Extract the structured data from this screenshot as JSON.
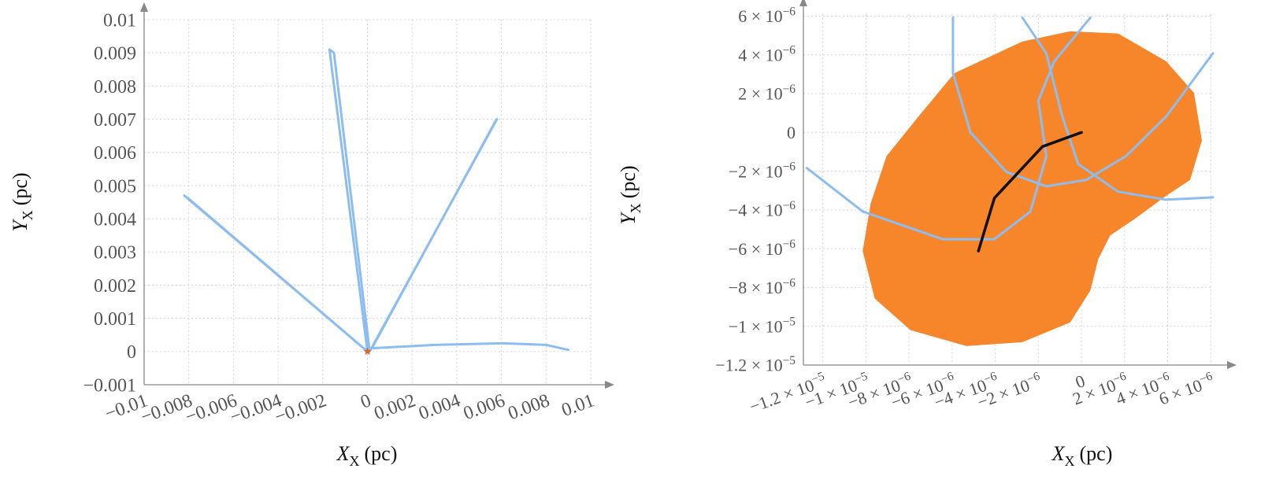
{
  "chart_data": [
    {
      "type": "line",
      "xlabel": {
        "main": "X",
        "sub": "X",
        "unit": "(pc)"
      },
      "ylabel": {
        "main": "Y",
        "sub": "X",
        "unit": "(pc)"
      },
      "xlim": [
        -0.01,
        0.01
      ],
      "ylim": [
        -0.001,
        0.01
      ],
      "grid": true,
      "xticks": [
        {
          "value": -0.01,
          "label": "−0.01"
        },
        {
          "value": -0.008,
          "label": "−0.008"
        },
        {
          "value": -0.006,
          "label": "−0.006"
        },
        {
          "value": -0.004,
          "label": "−0.004"
        },
        {
          "value": -0.002,
          "label": "−0.002"
        },
        0,
        0.002,
        0.004,
        0.006,
        0.008,
        0.01
      ],
      "yticks": [
        {
          "value": -0.001,
          "label": "−0.001"
        },
        0,
        0.001,
        0.002,
        0.003,
        0.004,
        0.005,
        0.006,
        0.007,
        0.008,
        0.009,
        0.01
      ],
      "series": [
        {
          "type": "line",
          "color": "#8dbdf0",
          "x": [
            0,
            -0.0082,
            -0.008,
            0,
            -0.0017,
            -0.0015,
            0.0001,
            0.0058,
            0.0057,
            0.0002,
            0.003,
            0.006,
            0.008,
            0.009
          ],
          "values": [
            0,
            0.0047,
            0.0046,
            0,
            0.0091,
            0.009,
            0,
            0.007,
            0.0069,
            0.0001,
            0.0002,
            0.00025,
            0.0002,
            5e-05
          ]
        },
        {
          "type": "scatter",
          "color": "#e0641b",
          "x": [
            0
          ],
          "values": [
            0
          ]
        }
      ]
    },
    {
      "type": "line",
      "xlabel": {
        "main": "X",
        "sub": "X",
        "unit": "(pc)"
      },
      "ylabel": {
        "main": "Y",
        "sub": "X",
        "unit": "(pc)"
      },
      "xlim": [
        -1.29e-05,
        6.1e-06
      ],
      "ylim": [
        -1.2e-05,
        6.1e-06
      ],
      "grid": true,
      "xticks": [
        {
          "value": -1.2e-05,
          "label": "−1.2 × 10",
          "exponent": "−5"
        },
        {
          "value": -1e-05,
          "label": "−1 × 10",
          "exponent": "−5"
        },
        {
          "value": -8e-06,
          "label": "−8 × 10",
          "exponent": "−6"
        },
        {
          "value": -6e-06,
          "label": "−6 × 10",
          "exponent": "−6"
        },
        {
          "value": -4e-06,
          "label": "−4 × 10",
          "exponent": "−6"
        },
        {
          "value": -2e-06,
          "label": "−2 × 10",
          "exponent": "−6"
        },
        0,
        {
          "value": 2e-06,
          "label": "2 × 10",
          "exponent": "−6"
        },
        {
          "value": 4e-06,
          "label": "4 × 10",
          "exponent": "−6"
        },
        {
          "value": 6e-06,
          "label": "6 × 10",
          "exponent": "−6"
        }
      ],
      "yticks": [
        {
          "value": -1.2e-05,
          "label": "−1.2 × 10",
          "exponent": "−5"
        },
        {
          "value": -1e-05,
          "label": "−1 × 10",
          "exponent": "−5"
        },
        {
          "value": -8e-06,
          "label": "−8 × 10",
          "exponent": "−6"
        },
        {
          "value": -6e-06,
          "label": "−6 × 10",
          "exponent": "−6"
        },
        {
          "value": -4e-06,
          "label": "−4 × 10",
          "exponent": "−6"
        },
        {
          "value": -2e-06,
          "label": "−2 × 10",
          "exponent": "−6"
        },
        0,
        {
          "value": 2e-06,
          "label": "2 × 10",
          "exponent": "−6"
        },
        {
          "value": 4e-06,
          "label": "4 × 10",
          "exponent": "−6"
        },
        {
          "value": 6e-06,
          "label": "6 × 10",
          "exponent": "−6"
        }
      ],
      "series": [
        {
          "type": "area",
          "color": "#f7862b",
          "x": [
            -5.89e-06,
            -2.74e-06,
            -5.2e-07,
            1.7e-06,
            3.93e-06,
            5.22e-06,
            5.59e-06,
            5.04e-06,
            3.93e-06,
            2.44e-06,
            1.33e-06,
            7.8e-07,
            4.1e-07,
            -5.2e-07,
            -2.74e-06,
            -5.33e-06,
            -7.93e-06,
            -9.59e-06,
            -1.015e-05,
            -9.78e-06,
            -9.04e-06,
            -7.56e-06
          ],
          "values": [
            3.06e-06,
            4.69e-06,
            5.22e-06,
            5.1e-06,
            3.67e-06,
            2.04e-06,
            -4.1e-07,
            -2.45e-06,
            -3.27e-06,
            -4.49e-06,
            -5.31e-06,
            -6.53e-06,
            -8.16e-06,
            -9.8e-06,
            -1.082e-05,
            -1.102e-05,
            -1.02e-05,
            -8.57e-06,
            -6.12e-06,
            -3.67e-06,
            -1.22e-06,
            8.2e-07
          ]
        },
        {
          "type": "line",
          "color": "#8dbdf0",
          "x": [
            -1.274e-05,
            -1.015e-05,
            -6.44e-06,
            -4.04e-06,
            -2.37e-06,
            -1.63e-06,
            -2e-06,
            -1.26e-06,
            4.1e-07
          ],
          "values": [
            -1.84e-06,
            -4.08e-06,
            -5.51e-06,
            -5.51e-06,
            -4.08e-06,
            -1.22e-06,
            1.63e-06,
            3.67e-06,
            5.92e-06
          ]
        },
        {
          "type": "line",
          "color": "#8dbdf0",
          "x": [
            -5.96e-06,
            -5.96e-06,
            -5.15e-06,
            -3.48e-06,
            -1.63e-06,
            2.2e-07,
            2.07e-06,
            3.93e-06,
            6.1e-06
          ],
          "values": [
            5.92e-06,
            3.06e-06,
            0,
            -2.04e-06,
            -2.78e-06,
            -2.45e-06,
            -1.22e-06,
            8.2e-07,
            4.08e-06
          ]
        },
        {
          "type": "line",
          "color": "#8dbdf0",
          "x": [
            -2.74e-06,
            -1.63e-06,
            -8.9e-07,
            -1.5e-07,
            1.7e-06,
            3.93e-06,
            6.1e-06
          ],
          "values": [
            5.92e-06,
            4.08e-06,
            8.2e-07,
            -1.63e-06,
            -3.06e-06,
            -3.47e-06,
            -3.35e-06
          ]
        },
        {
          "type": "line",
          "color": "#111111",
          "x": [
            0,
            -1.81e-06,
            -4.04e-06,
            -4.78e-06
          ],
          "values": [
            0,
            -7.3e-07,
            -3.39e-06,
            -6.12e-06
          ]
        }
      ]
    }
  ]
}
